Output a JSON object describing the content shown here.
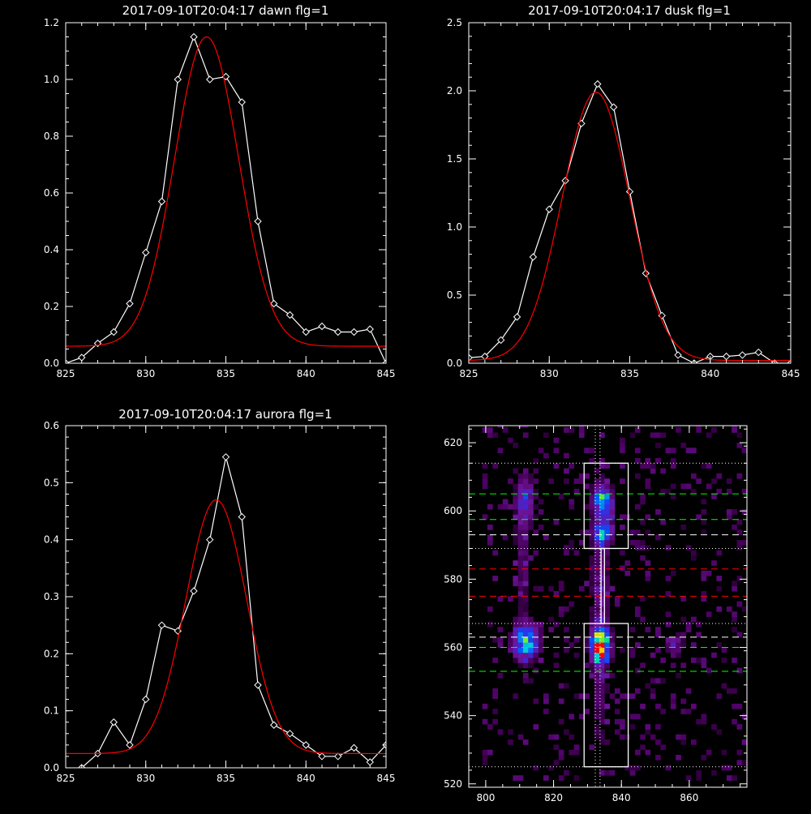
{
  "chart_data": [
    {
      "type": "line",
      "title": "2017-09-10T20:04:17 dawn flg=1",
      "xlim": [
        825,
        845
      ],
      "ylim": [
        0,
        1.2
      ],
      "xticks": [
        "825",
        "830",
        "835",
        "840",
        "845"
      ],
      "yticks": [
        "0.0",
        "0.2",
        "0.4",
        "0.6",
        "0.8",
        "1.0",
        "1.2"
      ],
      "series": [
        {
          "color": "#ffffff",
          "marker": "diamond",
          "x": [
            825,
            826,
            827,
            828,
            829,
            830,
            831,
            832,
            833,
            834,
            835,
            836,
            837,
            838,
            839,
            840,
            841,
            842,
            843,
            844,
            845
          ],
          "y": [
            0.0,
            0.02,
            0.07,
            0.11,
            0.21,
            0.39,
            0.57,
            1.0,
            1.15,
            1.0,
            1.01,
            0.92,
            0.5,
            0.21,
            0.17,
            0.11,
            0.13,
            0.11,
            0.11,
            0.12,
            0.0
          ]
        },
        {
          "color": "#ff0000",
          "fit": "gaussian",
          "amplitude": 1.09,
          "center": 833.8,
          "sigma": 2.0,
          "offset": 0.06,
          "slope": 0.0
        }
      ]
    },
    {
      "type": "line",
      "title": "2017-09-10T20:04:17 dusk flg=1",
      "xlim": [
        825,
        845
      ],
      "ylim": [
        0,
        2.5
      ],
      "xticks": [
        "825",
        "830",
        "835",
        "840",
        "845"
      ],
      "yticks": [
        "0.0",
        "0.5",
        "1.0",
        "1.5",
        "2.0",
        "2.5"
      ],
      "series": [
        {
          "color": "#ffffff",
          "marker": "diamond",
          "x": [
            825,
            826,
            827,
            828,
            829,
            830,
            831,
            832,
            833,
            834,
            835,
            836,
            837,
            838,
            839,
            840,
            841,
            842,
            843,
            844,
            845
          ],
          "y": [
            0.04,
            0.05,
            0.17,
            0.34,
            0.78,
            1.13,
            1.34,
            1.76,
            2.05,
            1.88,
            1.26,
            0.66,
            0.35,
            0.06,
            0.0,
            0.05,
            0.05,
            0.06,
            0.08,
            0.0,
            0.0
          ]
        },
        {
          "color": "#ff0000",
          "fit": "gaussian",
          "amplitude": 1.97,
          "center": 832.9,
          "sigma": 2.1,
          "offset": 0.02,
          "slope": 0.0
        }
      ]
    },
    {
      "type": "line",
      "title": "2017-09-10T20:04:17 aurora flg=1",
      "xlim": [
        825,
        845
      ],
      "ylim": [
        0,
        0.6
      ],
      "xticks": [
        "825",
        "830",
        "835",
        "840",
        "845"
      ],
      "yticks": [
        "0.0",
        "0.1",
        "0.2",
        "0.3",
        "0.4",
        "0.5",
        "0.6"
      ],
      "series": [
        {
          "color": "#ffffff",
          "marker": "diamond",
          "x": [
            826,
            827,
            828,
            829,
            830,
            831,
            832,
            833,
            834,
            835,
            836,
            837,
            838,
            839,
            840,
            841,
            842,
            843,
            844,
            845
          ],
          "y": [
            0.0,
            0.025,
            0.08,
            0.04,
            0.12,
            0.25,
            0.24,
            0.31,
            0.4,
            0.545,
            0.44,
            0.145,
            0.075,
            0.06,
            0.04,
            0.02,
            0.02,
            0.035,
            0.01,
            0.04
          ]
        },
        {
          "color": "#ff0000",
          "fit": "gaussian",
          "amplitude": 0.445,
          "center": 834.4,
          "sigma": 1.9,
          "offset": 0.025,
          "slope": 0.0
        }
      ]
    },
    {
      "type": "heatmap",
      "title": "",
      "xlim": [
        795,
        877
      ],
      "ylim": [
        519,
        625
      ],
      "xticks": [
        "800",
        "820",
        "840",
        "860"
      ],
      "yticks": [
        "520",
        "540",
        "560",
        "580",
        "600",
        "620"
      ],
      "blobs": [
        {
          "x": 811,
          "y": 561,
          "sx": 2.5,
          "sy": 3.5,
          "amp": 0.62
        },
        {
          "x": 811,
          "y": 602,
          "sx": 1.8,
          "sy": 4.5,
          "amp": 0.32
        },
        {
          "x": 810,
          "y": 585,
          "sx": 1.5,
          "sy": 12,
          "amp": 0.14
        },
        {
          "x": 833,
          "y": 560,
          "sx": 1.8,
          "sy": 3.0,
          "amp": 0.98
        },
        {
          "x": 834,
          "y": 602,
          "sx": 1.8,
          "sy": 3.0,
          "amp": 0.58
        },
        {
          "x": 834,
          "y": 593,
          "sx": 1.8,
          "sy": 2.0,
          "amp": 0.52
        },
        {
          "x": 833,
          "y": 580,
          "sx": 1.8,
          "sy": 20,
          "amp": 0.18
        },
        {
          "x": 833,
          "y": 545,
          "sx": 1.5,
          "sy": 12,
          "amp": 0.1
        },
        {
          "x": 855,
          "y": 560,
          "sx": 2.0,
          "sy": 2.0,
          "amp": 0.22
        }
      ],
      "vlines": [
        {
          "x": 832.3,
          "style": "dotted",
          "color": "#ffffff"
        },
        {
          "x": 833.7,
          "style": "dotted",
          "color": "#ffffff"
        }
      ],
      "hlines": [
        {
          "y": 614,
          "style": "dotted",
          "color": "#ffffff"
        },
        {
          "y": 589,
          "style": "dotted",
          "color": "#ffffff"
        },
        {
          "y": 567,
          "style": "dotted",
          "color": "#ffffff"
        },
        {
          "y": 525,
          "style": "dotted",
          "color": "#ffffff"
        },
        {
          "y": 605,
          "style": "dashed",
          "color": "#00ff00"
        },
        {
          "y": 597.5,
          "style": "dashed",
          "color": "#00ff00"
        },
        {
          "y": 560,
          "style": "dashed",
          "color": "#00ff00"
        },
        {
          "y": 553,
          "style": "dashed",
          "color": "#00ff00"
        },
        {
          "y": 593,
          "style": "dashed",
          "color": "#ffffff"
        },
        {
          "y": 563,
          "style": "dashed",
          "color": "#ffffff"
        },
        {
          "y": 583,
          "style": "dashed",
          "color": "#ff0000"
        },
        {
          "y": 575,
          "style": "dashed",
          "color": "#ff0000"
        }
      ],
      "boxes": [
        {
          "x0": 829,
          "x1": 842,
          "y0": 589,
          "y1": 614
        },
        {
          "x0": 829,
          "x1": 842,
          "y0": 525,
          "y1": 567
        },
        {
          "x0": 834,
          "x1": 835,
          "y0": 567,
          "y1": 589
        }
      ]
    }
  ]
}
